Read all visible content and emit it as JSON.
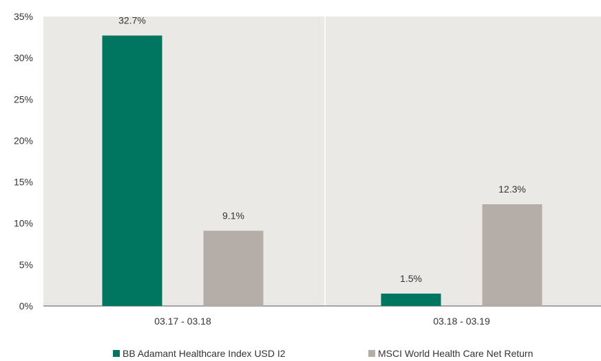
{
  "chart_data": {
    "type": "bar",
    "categories": [
      "03.17 - 03.18",
      "03.18 - 03.19"
    ],
    "series": [
      {
        "name": "BB Adamant Healthcare Index USD I2",
        "values": [
          32.7,
          1.5
        ],
        "labels": [
          "32.7%",
          "1.5%"
        ],
        "color": "#007560"
      },
      {
        "name": "MSCI World Health Care Net Return",
        "values": [
          9.1,
          12.3
        ],
        "labels": [
          "9.1%",
          "12.3%"
        ],
        "color": "#b5aea8"
      }
    ],
    "ylim": [
      0,
      35
    ],
    "yticks": [
      0,
      5,
      10,
      15,
      20,
      25,
      30,
      35
    ],
    "ytick_labels": [
      "0%",
      "5%",
      "10%",
      "15%",
      "20%",
      "25%",
      "30%",
      "35%"
    ],
    "plot_background": "#ebe9e5",
    "grid": false,
    "legend_position": "bottom"
  }
}
